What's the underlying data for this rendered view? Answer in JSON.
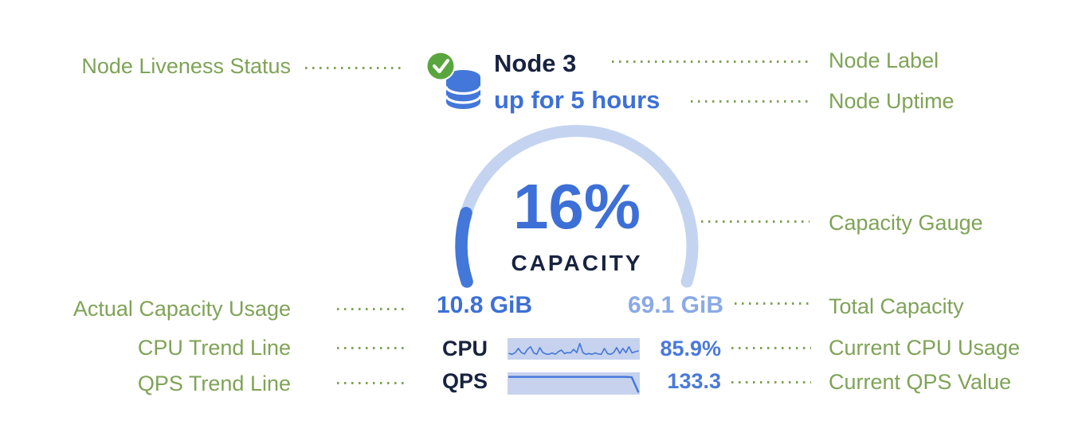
{
  "colors": {
    "annotation_green": "#7fa357",
    "navy": "#17233f",
    "blue": "#3d70d6",
    "value_blue": "#4a79da",
    "light_blue": "#8aa9e6",
    "pale_box": "#c6d2ee",
    "gauge_track": "#c4d4f0",
    "gauge_fill": "#4377d9",
    "liveness_green": "#5aa63e"
  },
  "node": {
    "label": "Node 3",
    "uptime": "up for 5 hours"
  },
  "gauge": {
    "percent_text": "16%",
    "percent_value": 16,
    "caption": "CAPACITY",
    "used": "10.8 GiB",
    "total": "69.1 GiB"
  },
  "metrics": {
    "cpu": {
      "label": "CPU",
      "value": "85.9%",
      "sparkline": [
        0.25,
        0.2,
        0.3,
        0.55,
        0.3,
        0.22,
        0.5,
        0.65,
        0.28,
        0.2,
        0.6,
        0.3,
        0.22,
        0.2,
        0.28,
        0.2,
        0.35,
        0.45,
        0.25,
        0.3,
        0.28,
        0.5,
        0.3,
        0.85,
        0.3,
        0.2,
        0.25,
        0.2,
        0.28,
        0.22,
        0.2,
        0.55,
        0.25,
        0.2,
        0.3,
        0.6,
        0.25,
        0.55,
        0.3,
        0.65,
        0.28,
        0.35,
        0.4
      ]
    },
    "qps": {
      "label": "QPS",
      "value": "133.3",
      "trend": [
        0.9,
        0.9,
        0.9,
        0.9,
        0.9,
        0.9,
        0.9,
        0.9,
        0.9,
        0.9,
        0.9,
        0.9,
        0.9,
        0.9,
        0.9,
        0.9,
        0.9,
        0.9,
        0.9,
        0.88,
        0.05
      ]
    }
  },
  "annotations": {
    "left": [
      "Node Liveness Status",
      "Actual Capacity Usage",
      "CPU Trend Line",
      "QPS Trend Line"
    ],
    "right": [
      "Node Label",
      "Node Uptime",
      "Capacity Gauge",
      "Total Capacity",
      "Current CPU Usage",
      "Current QPS Value"
    ]
  }
}
